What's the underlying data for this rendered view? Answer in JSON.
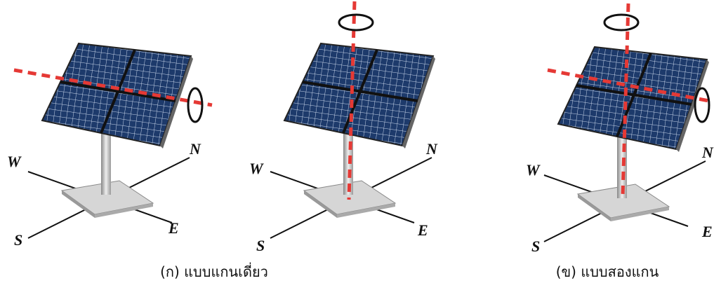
{
  "diagrams": [
    {
      "w": "W",
      "n": "N",
      "s": "S",
      "e": "E"
    },
    {
      "w": "W",
      "n": "N",
      "s": "S",
      "e": "E"
    },
    {
      "w": "W",
      "n": "N",
      "s": "S",
      "e": "E"
    }
  ],
  "captions": [
    "(ก) แบบแกนเดี่ยว",
    "(ข) แบบสองแกน"
  ]
}
